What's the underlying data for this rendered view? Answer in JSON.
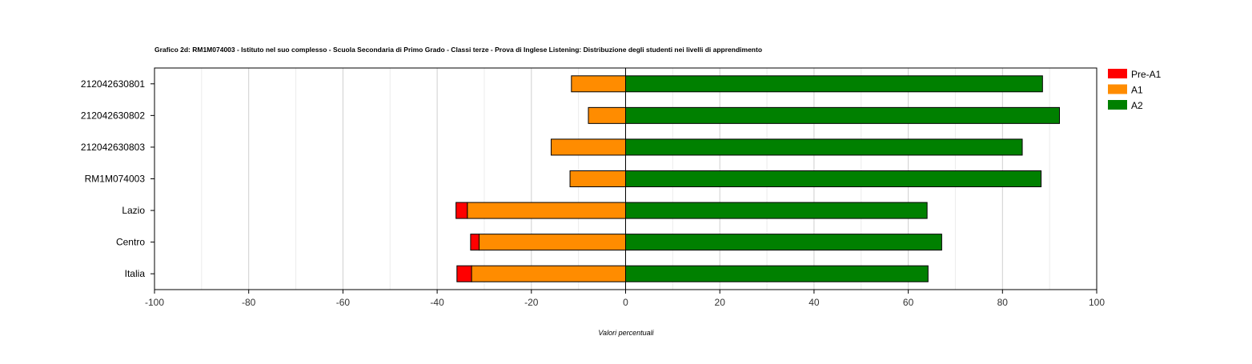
{
  "chart_data": {
    "type": "bar",
    "orientation": "horizontal",
    "stacked": "diverging",
    "title": "Grafico 2d: RM1M074003 - Istituto nel suo complesso - Scuola Secondaria di Primo Grado - Classi terze - Prova di Inglese Listening: Distribuzione degli studenti nei livelli di apprendimento",
    "xlabel": "Valori percentuali",
    "ylabel": "",
    "xlim": [
      -100,
      100
    ],
    "xticks": [
      -100,
      -80,
      -60,
      -40,
      -20,
      0,
      20,
      40,
      60,
      80,
      100
    ],
    "grid": true,
    "legend_position": "right",
    "categories": [
      "212042630801",
      "212042630802",
      "212042630803",
      "RM1M074003",
      "Lazio",
      "Centro",
      "Italia"
    ],
    "series": [
      {
        "name": "Pre-A1",
        "color": "#ff0000",
        "values": [
          0,
          0,
          0,
          0,
          2.4,
          1.8,
          3.1
        ]
      },
      {
        "name": "A1",
        "color": "#ff8c00",
        "values": [
          11.5,
          7.9,
          15.8,
          11.8,
          33.6,
          31.1,
          32.7
        ]
      },
      {
        "name": "A2",
        "color": "#008000",
        "values": [
          88.5,
          92.1,
          84.2,
          88.2,
          64.0,
          67.1,
          64.2
        ]
      }
    ]
  }
}
